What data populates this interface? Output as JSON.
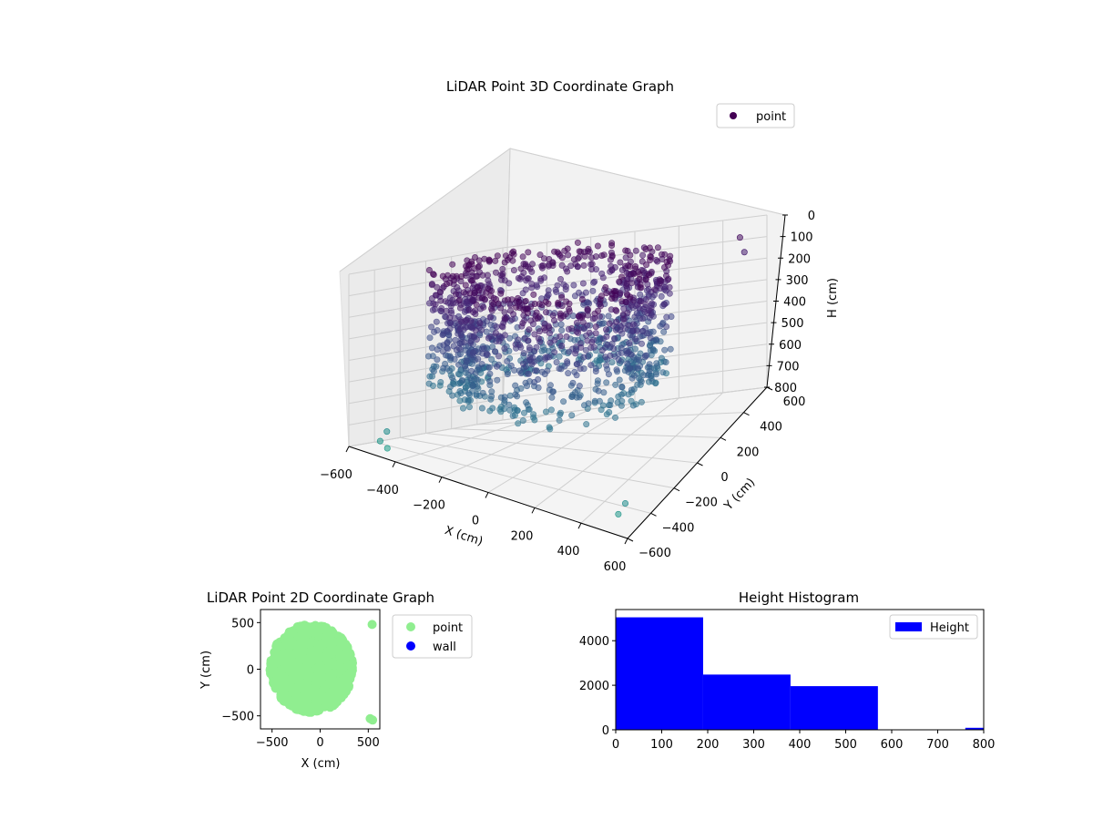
{
  "chart_data": [
    {
      "type": "scatter3d",
      "title": "LiDAR Point 3D Coordinate Graph",
      "xlabel": "X (cm)",
      "ylabel": "Y (cm)",
      "zlabel": "H (cm)",
      "xlim": [
        -600,
        600
      ],
      "ylim": [
        -600,
        600
      ],
      "zlim": [
        0,
        800
      ],
      "z_inverted": true,
      "xticks": [
        -600,
        -400,
        -200,
        0,
        200,
        400,
        600
      ],
      "yticks": [
        -600,
        -400,
        -200,
        0,
        200,
        400,
        600
      ],
      "zticks": [
        0,
        100,
        200,
        300,
        400,
        500,
        600,
        700,
        800
      ],
      "legend": [
        {
          "name": "point",
          "color": "#440154"
        }
      ],
      "legend_placement": "upper right",
      "colormap": "viridis",
      "grid": true,
      "description_points": "dense cylindrical ring of points, radius about 450 cm, heights 0-550 cm, plus scattered outliers",
      "outliers": [
        {
          "x": 520,
          "y": 520,
          "h": 50
        },
        {
          "x": 540,
          "y": 520,
          "h": 120
        },
        {
          "x": 550,
          "y": -520,
          "h": 700
        },
        {
          "x": 520,
          "y": -520,
          "h": 760
        },
        {
          "x": -480,
          "y": -520,
          "h": 700
        },
        {
          "x": -520,
          "y": -500,
          "h": 760
        },
        {
          "x": -500,
          "y": -480,
          "h": 790
        }
      ]
    },
    {
      "type": "scatter",
      "title": "LiDAR Point 2D Coordinate Graph",
      "xlabel": "X (cm)",
      "ylabel": "Y (cm)",
      "xlim": [
        -620,
        620
      ],
      "ylim": [
        -640,
        640
      ],
      "xticks": [
        -500,
        0,
        500
      ],
      "yticks": [
        -500,
        0,
        500
      ],
      "legend": [
        {
          "name": "point",
          "color": "#90ee90"
        },
        {
          "name": "wall",
          "color": "#0000ff"
        }
      ],
      "legend_placement": "outside right",
      "outliers": [
        {
          "x": 540,
          "y": 480
        },
        {
          "x": 520,
          "y": -530
        },
        {
          "x": 545,
          "y": -545
        }
      ]
    },
    {
      "type": "histogram",
      "title": "Height Histogram",
      "legend": [
        {
          "name": "Height",
          "color": "#0000ff"
        }
      ],
      "legend_placement": "upper right",
      "xlim": [
        0,
        800
      ],
      "ylim": [
        0,
        5400
      ],
      "xticks": [
        0,
        100,
        200,
        300,
        400,
        500,
        600,
        700,
        800
      ],
      "yticks": [
        0,
        2000,
        4000
      ],
      "bins": [
        {
          "x0": 0,
          "x1": 190,
          "count": 5050
        },
        {
          "x0": 190,
          "x1": 380,
          "count": 2480
        },
        {
          "x0": 380,
          "x1": 570,
          "count": 1960
        },
        {
          "x0": 570,
          "x1": 760,
          "count": 0
        },
        {
          "x0": 760,
          "x1": 800,
          "count": 90
        }
      ]
    }
  ]
}
